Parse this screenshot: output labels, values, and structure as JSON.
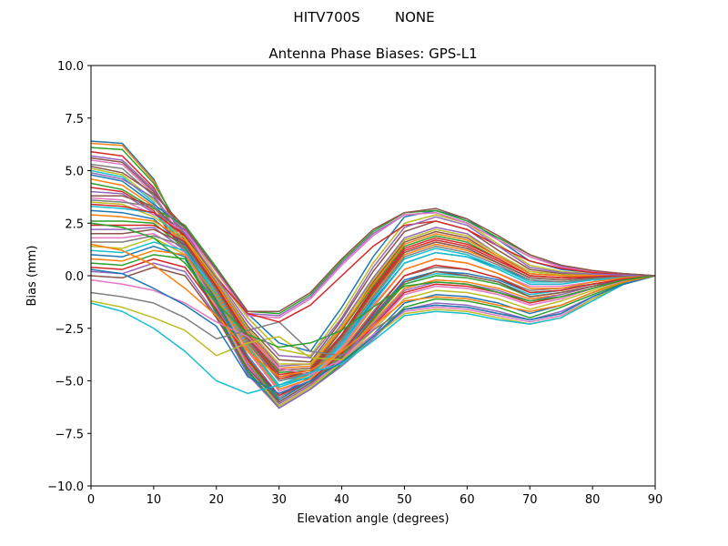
{
  "figure": {
    "suptitle": "HITV700S        NONE"
  },
  "chart_data": {
    "type": "line",
    "title": "Antenna Phase Biases: GPS-L1",
    "xlabel": "Elevation angle (degrees)",
    "ylabel": "Bias (mm)",
    "xlim": [
      0,
      90
    ],
    "ylim": [
      -10,
      10
    ],
    "xticks": [
      0,
      10,
      20,
      30,
      40,
      50,
      60,
      70,
      80,
      90
    ],
    "yticks": [
      -10.0,
      -7.5,
      -5.0,
      -2.5,
      0.0,
      2.5,
      5.0,
      7.5,
      10.0
    ],
    "ytick_labels": [
      "−10.0",
      "−7.5",
      "−5.0",
      "−2.5",
      "0.0",
      "2.5",
      "5.0",
      "7.5",
      "10.0"
    ],
    "xtick_labels": [
      "0",
      "10",
      "20",
      "30",
      "40",
      "50",
      "60",
      "70",
      "80",
      "90"
    ],
    "grid": false,
    "legend": "none",
    "colors": [
      "#1f77b4",
      "#ff7f0e",
      "#2ca02c",
      "#d62728",
      "#9467bd",
      "#8c564b",
      "#e377c2",
      "#7f7f7f",
      "#bcbd22",
      "#17becf"
    ],
    "x": [
      0,
      5,
      10,
      15,
      20,
      25,
      30,
      35,
      40,
      45,
      50,
      55,
      60,
      65,
      70,
      75,
      80,
      85,
      90
    ],
    "series": [
      {
        "values": [
          6.4,
          6.3,
          4.6,
          1.6,
          -1.2,
          -3.8,
          -5.7,
          -4.8,
          -3.2,
          -1.2,
          0.6,
          1.1,
          0.9,
          0.4,
          -0.2,
          -0.3,
          -0.2,
          -0.1,
          0.0
        ]
      },
      {
        "values": [
          6.3,
          6.2,
          4.5,
          1.8,
          -0.8,
          -3.3,
          -5.2,
          -4.7,
          -3.0,
          -0.9,
          1.0,
          1.5,
          1.2,
          0.6,
          -0.1,
          -0.2,
          -0.1,
          -0.05,
          0.0
        ]
      },
      {
        "values": [
          6.1,
          6.0,
          4.4,
          1.9,
          -0.5,
          -2.9,
          -4.6,
          -4.5,
          -2.6,
          -0.5,
          1.4,
          1.9,
          1.6,
          0.8,
          0.0,
          -0.1,
          -0.05,
          0.0,
          0.0
        ]
      },
      {
        "values": [
          5.9,
          5.7,
          4.2,
          1.7,
          -0.6,
          -3.0,
          -4.9,
          -4.6,
          -2.8,
          -0.7,
          1.2,
          1.7,
          1.4,
          0.7,
          0.0,
          -0.1,
          -0.05,
          0.0,
          0.0
        ]
      },
      {
        "values": [
          5.7,
          5.5,
          4.1,
          2.0,
          -0.3,
          -2.6,
          -4.3,
          -4.2,
          -2.3,
          -0.1,
          1.8,
          2.3,
          2.0,
          1.0,
          0.1,
          0.0,
          0.0,
          0.0,
          0.0
        ]
      },
      {
        "values": [
          5.6,
          5.4,
          4.0,
          2.1,
          -0.2,
          -2.4,
          -4.0,
          -4.1,
          -2.1,
          0.2,
          2.1,
          2.6,
          2.2,
          1.2,
          0.3,
          0.1,
          0.05,
          0.02,
          0.0
        ]
      },
      {
        "values": [
          5.5,
          5.3,
          3.9,
          1.5,
          -1.0,
          -3.6,
          -5.5,
          -4.9,
          -3.4,
          -1.4,
          0.3,
          0.8,
          0.6,
          0.1,
          -0.5,
          -0.5,
          -0.3,
          -0.1,
          0.0
        ]
      },
      {
        "values": [
          5.3,
          5.1,
          3.8,
          1.4,
          -1.1,
          -3.8,
          -5.8,
          -5.0,
          -3.6,
          -1.7,
          0.0,
          0.4,
          0.3,
          -0.1,
          -0.7,
          -0.6,
          -0.4,
          -0.2,
          0.0
        ]
      },
      {
        "values": [
          5.1,
          4.8,
          3.6,
          2.2,
          0.0,
          -2.0,
          -3.5,
          -3.8,
          -1.8,
          0.6,
          2.5,
          2.9,
          2.5,
          1.5,
          0.5,
          0.2,
          0.1,
          0.05,
          0.0
        ]
      },
      {
        "values": [
          5.0,
          4.7,
          3.5,
          1.3,
          -1.3,
          -4.0,
          -6.0,
          -5.1,
          -3.8,
          -2.0,
          -0.3,
          0.1,
          0.0,
          -0.3,
          -0.9,
          -0.7,
          -0.4,
          -0.2,
          0.0
        ]
      },
      {
        "values": [
          4.8,
          4.5,
          3.4,
          2.3,
          0.2,
          -1.8,
          -3.2,
          -3.6,
          -1.5,
          0.9,
          2.8,
          3.1,
          2.7,
          1.7,
          0.7,
          0.3,
          0.15,
          0.05,
          0.0
        ]
      },
      {
        "values": [
          4.6,
          4.3,
          3.3,
          1.2,
          -1.4,
          -4.1,
          -6.1,
          -5.2,
          -3.9,
          -2.2,
          -0.6,
          -0.2,
          -0.3,
          -0.6,
          -1.1,
          -0.9,
          -0.5,
          -0.2,
          0.0
        ]
      },
      {
        "values": [
          4.4,
          4.1,
          3.2,
          2.4,
          0.4,
          -1.7,
          -1.8,
          -0.9,
          0.7,
          2.1,
          3.0,
          3.1,
          2.6,
          1.8,
          1.0,
          0.5,
          0.2,
          0.1,
          0.0
        ]
      },
      {
        "values": [
          4.2,
          4.0,
          3.1,
          1.1,
          -1.5,
          -4.3,
          -6.2,
          -5.3,
          -4.0,
          -2.4,
          -0.8,
          -0.4,
          -0.5,
          -0.8,
          -1.3,
          -1.0,
          -0.6,
          -0.25,
          0.0
        ]
      },
      {
        "values": [
          4.0,
          3.9,
          3.0,
          2.2,
          0.3,
          -1.8,
          -1.9,
          -1.0,
          0.6,
          2.0,
          2.9,
          3.0,
          2.5,
          1.7,
          0.9,
          0.45,
          0.2,
          0.1,
          0.0
        ]
      },
      {
        "values": [
          3.8,
          3.8,
          3.3,
          1.9,
          -0.4,
          -2.8,
          -4.5,
          -4.4,
          -2.6,
          -0.3,
          1.6,
          2.1,
          1.8,
          0.9,
          0.1,
          0.0,
          0.0,
          0.0,
          0.0
        ]
      },
      {
        "values": [
          3.7,
          3.6,
          2.9,
          2.1,
          0.2,
          -1.9,
          -2.0,
          -1.1,
          0.5,
          1.9,
          2.9,
          3.0,
          2.5,
          1.7,
          0.9,
          0.4,
          0.2,
          0.1,
          0.0
        ]
      },
      {
        "values": [
          3.6,
          3.5,
          3.3,
          1.6,
          -0.7,
          -3.1,
          -5.0,
          -4.6,
          -3.0,
          -0.8,
          1.1,
          1.6,
          1.3,
          0.6,
          -0.1,
          -0.2,
          -0.1,
          -0.05,
          0.0
        ]
      },
      {
        "values": [
          3.5,
          3.4,
          2.8,
          1.8,
          -0.2,
          -2.5,
          -4.2,
          -4.2,
          -2.4,
          -0.2,
          1.7,
          2.2,
          1.9,
          1.0,
          0.2,
          0.05,
          0.02,
          0.0,
          0.0
        ]
      },
      {
        "values": [
          3.3,
          3.2,
          3.0,
          1.5,
          -0.9,
          -3.4,
          -5.3,
          -4.8,
          -3.2,
          -1.1,
          0.8,
          1.3,
          1.0,
          0.4,
          -0.3,
          -0.3,
          -0.2,
          -0.1,
          0.0
        ]
      },
      {
        "values": [
          3.1,
          3.0,
          2.7,
          1.4,
          -1.2,
          -3.9,
          -5.9,
          -5.0,
          -3.7,
          -1.9,
          -0.2,
          0.2,
          0.1,
          -0.2,
          -0.8,
          -0.7,
          -0.4,
          -0.2,
          0.0
        ]
      },
      {
        "values": [
          2.9,
          2.8,
          2.6,
          1.7,
          -0.4,
          -2.7,
          -4.4,
          -4.3,
          -2.5,
          -0.4,
          1.5,
          2.0,
          1.7,
          0.9,
          0.1,
          0.0,
          0.0,
          0.0,
          0.0
        ]
      },
      {
        "values": [
          2.6,
          2.6,
          2.5,
          1.3,
          -1.3,
          -4.0,
          -6.0,
          -5.1,
          -3.8,
          -2.1,
          -0.4,
          0.0,
          -0.1,
          -0.4,
          -1.0,
          -0.8,
          -0.5,
          -0.2,
          0.0
        ]
      },
      {
        "values": [
          2.4,
          2.4,
          2.4,
          1.6,
          -0.5,
          -2.9,
          -4.7,
          -4.5,
          -2.8,
          -0.6,
          1.3,
          1.8,
          1.5,
          0.8,
          0.0,
          -0.1,
          -0.05,
          0.0,
          0.0
        ]
      },
      {
        "values": [
          2.2,
          2.2,
          2.3,
          1.2,
          -1.4,
          -4.2,
          -6.1,
          -5.2,
          -3.9,
          -2.3,
          -0.7,
          -0.3,
          -0.4,
          -0.7,
          -1.2,
          -0.9,
          -0.5,
          -0.2,
          0.0
        ]
      },
      {
        "values": [
          2.0,
          2.0,
          2.2,
          1.5,
          -0.6,
          -3.0,
          -4.8,
          -4.6,
          -2.9,
          -0.8,
          1.1,
          1.6,
          1.3,
          0.6,
          -0.1,
          -0.2,
          -0.1,
          -0.05,
          0.0
        ]
      },
      {
        "values": [
          1.8,
          1.8,
          2.0,
          1.1,
          -1.5,
          -4.3,
          -6.2,
          -5.3,
          -4.0,
          -2.5,
          -0.9,
          -0.5,
          -0.6,
          -0.9,
          -1.4,
          -1.1,
          -0.6,
          -0.25,
          0.0
        ]
      },
      {
        "values": [
          1.6,
          1.6,
          1.9,
          1.4,
          -0.7,
          -3.2,
          -5.0,
          -4.7,
          -3.1,
          -1.0,
          0.9,
          1.4,
          1.1,
          0.5,
          -0.2,
          -0.3,
          -0.15,
          -0.05,
          0.0
        ]
      },
      {
        "values": [
          1.4,
          1.3,
          1.8,
          1.0,
          -1.6,
          -4.4,
          -6.2,
          -5.3,
          -4.1,
          -2.6,
          -1.1,
          -0.7,
          -0.8,
          -1.1,
          -1.6,
          -1.2,
          -0.7,
          -0.3,
          0.0
        ]
      },
      {
        "values": [
          1.2,
          1.1,
          1.6,
          1.2,
          -0.9,
          -3.4,
          -5.2,
          -4.8,
          -3.3,
          -1.3,
          0.6,
          1.1,
          0.9,
          0.3,
          -0.4,
          -0.4,
          -0.2,
          -0.1,
          0.0
        ]
      },
      {
        "values": [
          1.0,
          0.9,
          1.4,
          0.9,
          -1.7,
          -4.5,
          -6.3,
          -5.4,
          -4.2,
          -2.8,
          -1.3,
          -0.9,
          -1.0,
          -1.3,
          -1.8,
          -1.4,
          -0.8,
          -0.3,
          0.0
        ]
      },
      {
        "values": [
          0.8,
          0.7,
          1.2,
          1.0,
          -1.0,
          -3.5,
          -5.4,
          -4.9,
          -3.5,
          -1.5,
          0.3,
          0.8,
          0.6,
          0.1,
          -0.6,
          -0.6,
          -0.3,
          -0.1,
          0.0
        ]
      },
      {
        "values": [
          0.6,
          0.5,
          1.0,
          0.8,
          -1.8,
          -4.6,
          -6.3,
          -5.4,
          -4.2,
          -2.9,
          -1.5,
          -1.1,
          -1.2,
          -1.5,
          -2.0,
          -1.5,
          -0.9,
          -0.35,
          0.0
        ]
      },
      {
        "values": [
          0.4,
          0.3,
          0.8,
          0.4,
          -1.6,
          -4.0,
          -5.7,
          -5.0,
          -3.7,
          -1.8,
          0.0,
          0.5,
          0.3,
          -0.1,
          -0.8,
          -0.7,
          -0.4,
          -0.15,
          0.0
        ]
      },
      {
        "values": [
          0.2,
          0.1,
          0.6,
          0.2,
          -1.9,
          -4.7,
          -6.3,
          -5.4,
          -4.3,
          -3.0,
          -1.6,
          -1.3,
          -1.4,
          -1.7,
          -2.1,
          -1.7,
          -1.0,
          -0.4,
          0.0
        ]
      },
      {
        "values": [
          0.0,
          -0.1,
          0.4,
          0.0,
          -2.0,
          -4.4,
          -6.0,
          -5.1,
          -3.9,
          -2.0,
          -0.3,
          0.2,
          0.0,
          -0.3,
          -1.0,
          -0.8,
          -0.5,
          -0.2,
          0.0
        ]
      },
      {
        "values": [
          -0.2,
          -0.4,
          -0.7,
          -1.3,
          -2.2,
          -2.9,
          -4.4,
          -4.7,
          -4.0,
          -2.8,
          -1.7,
          -1.5,
          -1.6,
          -1.9,
          -2.2,
          -1.9,
          -1.1,
          -0.4,
          0.0
        ]
      },
      {
        "values": [
          -0.8,
          -1.0,
          -1.3,
          -2.0,
          -3.0,
          -2.6,
          -2.2,
          -3.6,
          -3.8,
          -2.6,
          -1.6,
          -1.4,
          -1.5,
          -1.8,
          -2.1,
          -1.8,
          -1.0,
          -0.4,
          0.0
        ]
      },
      {
        "values": [
          -1.2,
          -1.5,
          -2.0,
          -2.6,
          -3.8,
          -3.2,
          -2.9,
          -3.9,
          -4.0,
          -2.9,
          -1.8,
          -1.6,
          -1.7,
          -2.0,
          -2.3,
          -2.0,
          -1.1,
          -0.4,
          0.0
        ]
      },
      {
        "values": [
          -1.3,
          -1.7,
          -2.5,
          -3.6,
          -5.0,
          -5.6,
          -5.2,
          -4.6,
          -4.2,
          -3.1,
          -1.9,
          -1.7,
          -1.8,
          -2.1,
          -2.3,
          -2.0,
          -1.2,
          -0.4,
          0.0
        ]
      },
      {
        "values": [
          0.3,
          0.1,
          -0.6,
          -1.4,
          -2.4,
          -4.8,
          -5.6,
          -5.0,
          -4.1,
          -2.9,
          -1.6,
          -1.4,
          -1.5,
          -1.8,
          -2.1,
          -1.8,
          -1.0,
          -0.4,
          0.0
        ]
      },
      {
        "values": [
          1.5,
          1.2,
          0.5,
          -0.6,
          -1.9,
          -3.6,
          -4.8,
          -4.5,
          -3.6,
          -2.4,
          -1.2,
          -1.0,
          -1.1,
          -1.4,
          -1.7,
          -1.4,
          -0.8,
          -0.3,
          0.0
        ]
      },
      {
        "values": [
          2.5,
          2.3,
          1.8,
          0.6,
          -1.3,
          -2.8,
          -3.4,
          -3.2,
          -2.6,
          -1.5,
          -0.5,
          -0.3,
          -0.4,
          -0.8,
          -1.2,
          -1.0,
          -0.6,
          -0.2,
          0.0
        ]
      },
      {
        "values": [
          3.4,
          3.3,
          3.0,
          1.9,
          -0.1,
          -1.8,
          -2.2,
          -1.4,
          0.0,
          1.4,
          2.4,
          2.6,
          2.2,
          1.4,
          0.7,
          0.35,
          0.15,
          0.05,
          0.0
        ]
      },
      {
        "values": [
          4.9,
          4.6,
          3.7,
          2.0,
          -0.1,
          -2.2,
          -3.8,
          -3.9,
          -2.0,
          0.4,
          2.3,
          2.8,
          2.4,
          1.4,
          0.4,
          0.15,
          0.08,
          0.03,
          0.0
        ]
      },
      {
        "values": [
          5.2,
          4.9,
          3.9,
          2.3,
          0.3,
          -1.7,
          -1.7,
          -0.8,
          0.8,
          2.2,
          3.0,
          3.2,
          2.7,
          1.9,
          1.0,
          0.5,
          0.25,
          0.1,
          0.0
        ]
      }
    ]
  }
}
